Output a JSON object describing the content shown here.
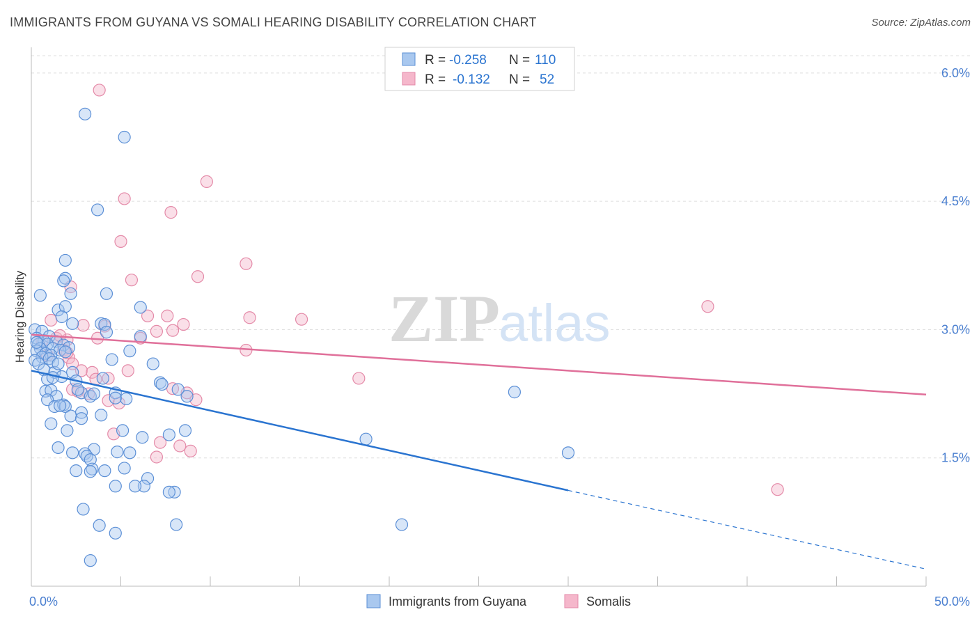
{
  "title": "IMMIGRANTS FROM GUYANA VS SOMALI HEARING DISABILITY CORRELATION CHART",
  "source": "Source: ZipAtlas.com",
  "watermark": {
    "zip": "ZIP",
    "atlas": "atlas"
  },
  "colors": {
    "guyana_fill": "#a9c8ef",
    "guyana_stroke": "#5b8fd6",
    "guyana_line": "#2a74d0",
    "somali_fill": "#f5b7cb",
    "somali_stroke": "#e48aa8",
    "somali_line": "#e0709a",
    "axis_label": "#4a7fd0",
    "grid": "#dddddd"
  },
  "legend_top": [
    {
      "series": "guyana",
      "r_label": "R =",
      "r_value": "-0.258",
      "n_label": "N =",
      "n_value": "110"
    },
    {
      "series": "somali",
      "r_label": "R =",
      "r_value": "-0.132",
      "n_label": "N =",
      "n_value": "52"
    }
  ],
  "chart_data": {
    "type": "scatter",
    "title": "IMMIGRANTS FROM GUYANA VS SOMALI HEARING DISABILITY CORRELATION CHART",
    "xlabel": "",
    "ylabel": "Hearing Disability",
    "xlim": [
      0,
      50
    ],
    "ylim": [
      0,
      6.3
    ],
    "x_tick_labels": {
      "min": "0.0%",
      "max": "50.0%"
    },
    "y_ticks": [
      1.5,
      3.0,
      4.5,
      6.0
    ],
    "y_tick_labels": [
      "1.5%",
      "3.0%",
      "4.5%",
      "6.0%"
    ],
    "grid": true,
    "legend_position": "bottom",
    "series": [
      {
        "name": "Immigrants from Guyana",
        "key": "guyana",
        "trend": {
          "x0": 0,
          "y0": 2.52,
          "x1": 30,
          "y1": 1.12,
          "dash_to_x": 50,
          "dash_to_y": 0.2
        },
        "points": [
          [
            3.0,
            5.52
          ],
          [
            5.2,
            5.25
          ],
          [
            3.7,
            4.4
          ],
          [
            1.9,
            3.81
          ],
          [
            1.9,
            3.6
          ],
          [
            1.8,
            3.57
          ],
          [
            4.2,
            3.42
          ],
          [
            0.5,
            3.4
          ],
          [
            2.2,
            3.42
          ],
          [
            1.5,
            3.23
          ],
          [
            1.9,
            3.27
          ],
          [
            6.1,
            3.26
          ],
          [
            1.7,
            3.15
          ],
          [
            3.9,
            3.07
          ],
          [
            4.1,
            3.06
          ],
          [
            2.3,
            3.07
          ],
          [
            0.2,
            3.0
          ],
          [
            0.6,
            2.98
          ],
          [
            1.0,
            2.92
          ],
          [
            4.2,
            2.97
          ],
          [
            6.1,
            2.92
          ],
          [
            0.3,
            2.9
          ],
          [
            0.7,
            2.87
          ],
          [
            1.4,
            2.86
          ],
          [
            0.4,
            2.83
          ],
          [
            0.9,
            2.83
          ],
          [
            1.8,
            2.82
          ],
          [
            2.1,
            2.79
          ],
          [
            1.2,
            2.78
          ],
          [
            0.5,
            2.78
          ],
          [
            0.3,
            2.75
          ],
          [
            0.8,
            2.72
          ],
          [
            1.6,
            2.76
          ],
          [
            1.1,
            2.7
          ],
          [
            1.9,
            2.74
          ],
          [
            0.6,
            2.68
          ],
          [
            1.0,
            2.66
          ],
          [
            0.2,
            2.64
          ],
          [
            4.5,
            2.65
          ],
          [
            6.8,
            2.6
          ],
          [
            0.4,
            2.6
          ],
          [
            1.2,
            2.62
          ],
          [
            0.7,
            2.53
          ],
          [
            1.3,
            2.5
          ],
          [
            2.3,
            2.5
          ],
          [
            1.7,
            2.45
          ],
          [
            0.9,
            2.42
          ],
          [
            1.2,
            2.44
          ],
          [
            4.0,
            2.43
          ],
          [
            2.5,
            2.4
          ],
          [
            7.2,
            2.38
          ],
          [
            7.3,
            2.36
          ],
          [
            8.2,
            2.3
          ],
          [
            0.8,
            2.28
          ],
          [
            1.1,
            2.29
          ],
          [
            2.8,
            2.26
          ],
          [
            4.7,
            2.26
          ],
          [
            1.4,
            2.22
          ],
          [
            3.3,
            2.22
          ],
          [
            8.7,
            2.22
          ],
          [
            5.3,
            2.19
          ],
          [
            4.7,
            2.2
          ],
          [
            0.9,
            2.18
          ],
          [
            27.0,
            2.27
          ],
          [
            1.3,
            2.1
          ],
          [
            1.8,
            2.12
          ],
          [
            1.9,
            2.1
          ],
          [
            1.6,
            2.11
          ],
          [
            2.8,
            2.03
          ],
          [
            3.9,
            2.0
          ],
          [
            2.2,
            1.99
          ],
          [
            2.8,
            1.96
          ],
          [
            1.1,
            1.9
          ],
          [
            5.1,
            1.82
          ],
          [
            2.0,
            1.82
          ],
          [
            7.7,
            1.77
          ],
          [
            8.6,
            1.82
          ],
          [
            6.2,
            1.74
          ],
          [
            18.7,
            1.72
          ],
          [
            1.5,
            1.62
          ],
          [
            3.5,
            1.6
          ],
          [
            2.3,
            1.56
          ],
          [
            3.0,
            1.55
          ],
          [
            4.8,
            1.57
          ],
          [
            5.5,
            1.56
          ],
          [
            30.0,
            1.56
          ],
          [
            3.1,
            1.52
          ],
          [
            3.3,
            1.48
          ],
          [
            5.2,
            1.38
          ],
          [
            3.4,
            1.37
          ],
          [
            4.1,
            1.35
          ],
          [
            2.5,
            1.35
          ],
          [
            3.3,
            1.34
          ],
          [
            6.5,
            1.26
          ],
          [
            6.3,
            1.17
          ],
          [
            4.7,
            1.17
          ],
          [
            5.8,
            1.17
          ],
          [
            8.0,
            1.1
          ],
          [
            7.7,
            1.1
          ],
          [
            2.9,
            0.9
          ],
          [
            3.8,
            0.71
          ],
          [
            8.1,
            0.72
          ],
          [
            20.7,
            0.72
          ],
          [
            4.7,
            0.62
          ],
          [
            3.3,
            0.3
          ],
          [
            3.5,
            2.25
          ],
          [
            2.6,
            2.3
          ],
          [
            1.5,
            2.6
          ],
          [
            0.3,
            2.85
          ],
          [
            5.5,
            2.75
          ]
        ]
      },
      {
        "name": "Somalis",
        "key": "somali",
        "trend": {
          "x0": 0,
          "y0": 2.94,
          "x1": 50,
          "y1": 2.24
        },
        "points": [
          [
            3.8,
            5.8
          ],
          [
            9.8,
            4.73
          ],
          [
            5.2,
            4.53
          ],
          [
            7.8,
            4.37
          ],
          [
            5.0,
            4.03
          ],
          [
            12.0,
            3.77
          ],
          [
            9.3,
            3.62
          ],
          [
            5.6,
            3.58
          ],
          [
            2.2,
            3.5
          ],
          [
            37.8,
            3.27
          ],
          [
            6.5,
            3.16
          ],
          [
            7.6,
            3.16
          ],
          [
            12.2,
            3.14
          ],
          [
            15.1,
            3.12
          ],
          [
            1.1,
            3.11
          ],
          [
            8.5,
            3.06
          ],
          [
            2.9,
            3.05
          ],
          [
            4.1,
            3.04
          ],
          [
            7.0,
            2.98
          ],
          [
            7.9,
            2.99
          ],
          [
            6.1,
            2.9
          ],
          [
            2.0,
            2.88
          ],
          [
            3.7,
            2.9
          ],
          [
            1.4,
            2.9
          ],
          [
            0.6,
            2.87
          ],
          [
            1.8,
            2.76
          ],
          [
            12.0,
            2.76
          ],
          [
            0.9,
            2.7
          ],
          [
            2.1,
            2.67
          ],
          [
            2.3,
            2.6
          ],
          [
            5.4,
            2.52
          ],
          [
            2.8,
            2.52
          ],
          [
            3.4,
            2.5
          ],
          [
            3.6,
            2.42
          ],
          [
            4.3,
            2.43
          ],
          [
            18.3,
            2.43
          ],
          [
            2.3,
            2.3
          ],
          [
            2.6,
            2.28
          ],
          [
            3.2,
            2.25
          ],
          [
            7.9,
            2.31
          ],
          [
            8.7,
            2.26
          ],
          [
            9.2,
            2.18
          ],
          [
            4.3,
            2.17
          ],
          [
            4.9,
            2.14
          ],
          [
            4.6,
            1.78
          ],
          [
            7.2,
            1.68
          ],
          [
            8.3,
            1.64
          ],
          [
            8.9,
            1.58
          ],
          [
            7.0,
            1.51
          ],
          [
            41.7,
            1.13
          ],
          [
            1.6,
            2.93
          ],
          [
            2.0,
            2.73
          ]
        ]
      }
    ]
  },
  "legend_bottom": [
    {
      "series": "guyana",
      "label": "Immigrants from Guyana"
    },
    {
      "series": "somali",
      "label": "Somalis"
    }
  ]
}
